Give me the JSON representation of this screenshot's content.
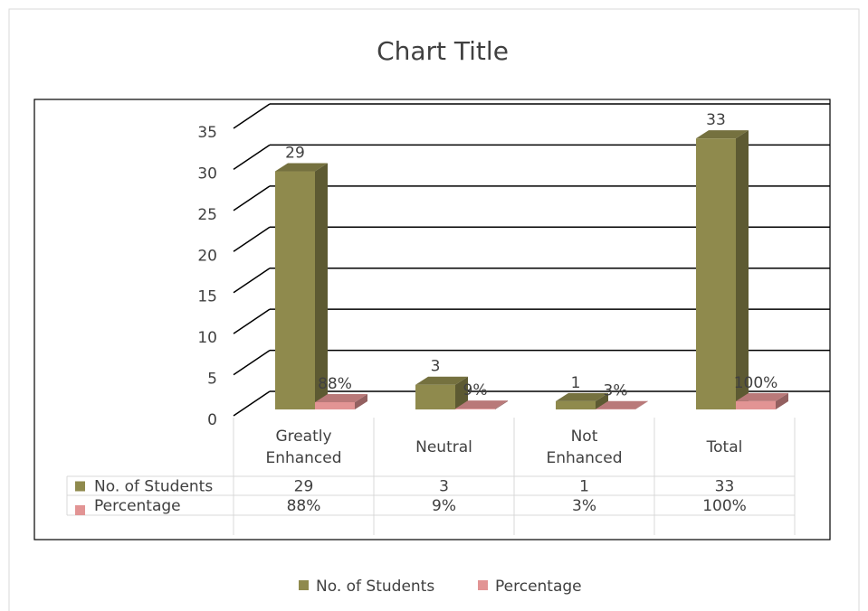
{
  "chart_data": {
    "type": "bar3d",
    "title": "Chart Title",
    "categories": [
      "Greatly Enhanced",
      "Neutral",
      "Not Enhanced",
      "Total"
    ],
    "series": [
      {
        "name": "No. of Students",
        "color": "#8f8a4d",
        "values": [
          29,
          3,
          1,
          33
        ]
      },
      {
        "name": "Percentage",
        "color": "#e29494",
        "values": [
          0.88,
          0.09,
          0.03,
          1.0
        ],
        "value_labels": [
          "88%",
          "9%",
          "3%",
          "100%"
        ]
      }
    ],
    "ylim": [
      0,
      35
    ],
    "yticks": [
      0,
      5,
      10,
      15,
      20,
      25,
      30,
      35
    ],
    "grid": true,
    "legend": "bottom",
    "data_table": true
  }
}
